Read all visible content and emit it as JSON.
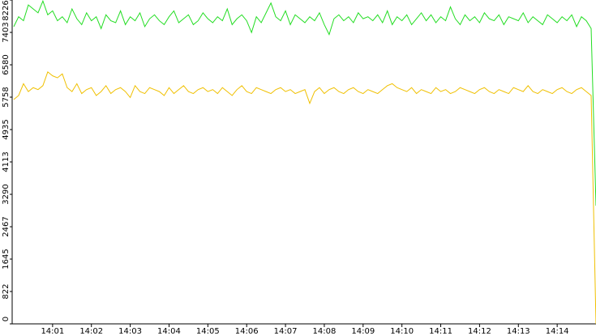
{
  "chart_data": {
    "type": "line",
    "categories": [
      null,
      null,
      null,
      null,
      null,
      null,
      null,
      null,
      "14:01",
      null,
      null,
      null,
      null,
      null,
      null,
      null,
      "14:02",
      null,
      null,
      null,
      null,
      null,
      null,
      null,
      "14:03",
      null,
      null,
      null,
      null,
      null,
      null,
      null,
      "14:04",
      null,
      null,
      null,
      null,
      null,
      null,
      null,
      "14:05",
      null,
      null,
      null,
      null,
      null,
      null,
      null,
      "14:06",
      null,
      null,
      null,
      null,
      null,
      null,
      null,
      "14:07",
      null,
      null,
      null,
      null,
      null,
      null,
      null,
      "14:08",
      null,
      null,
      null,
      null,
      null,
      null,
      null,
      "14:09",
      null,
      null,
      null,
      null,
      null,
      null,
      null,
      "14:10",
      null,
      null,
      null,
      null,
      null,
      null,
      null,
      "14:11",
      null,
      null,
      null,
      null,
      null,
      null,
      null,
      "14:12",
      null,
      null,
      null,
      null,
      null,
      null,
      null,
      "14:13",
      null,
      null,
      null,
      null,
      null,
      null,
      null,
      "14:14",
      null,
      null,
      null,
      null,
      null,
      null,
      null,
      null
    ],
    "series": [
      {
        "color": "#22dd22",
        "values": [
          7550,
          7800,
          7700,
          8100,
          8000,
          7900,
          8200,
          7850,
          7950,
          7700,
          7800,
          7650,
          8000,
          7750,
          7600,
          7900,
          7700,
          7800,
          7500,
          7850,
          7700,
          7650,
          7950,
          7600,
          7800,
          7700,
          7900,
          7550,
          7750,
          7850,
          7700,
          7600,
          7800,
          7950,
          7650,
          7750,
          7850,
          7600,
          7700,
          7900,
          7750,
          7650,
          7800,
          7700,
          8000,
          7600,
          7750,
          7850,
          7700,
          7400,
          7800,
          7650,
          7900,
          8150,
          7800,
          7700,
          7950,
          7600,
          7850,
          7750,
          7650,
          7800,
          7700,
          7900,
          7600,
          7350,
          7750,
          7850,
          7700,
          7800,
          7650,
          7900,
          7750,
          7800,
          7700,
          7850,
          7650,
          7950,
          7600,
          7800,
          7700,
          7850,
          7600,
          7750,
          7900,
          7700,
          7850,
          7650,
          7800,
          7700,
          8050,
          7750,
          7600,
          7850,
          7700,
          7800,
          7650,
          7900,
          7750,
          7700,
          7850,
          7600,
          7800,
          7750,
          7700,
          7900,
          7650,
          7800,
          7700,
          7600,
          7850,
          7750,
          7650,
          7800,
          7700,
          7850,
          7550,
          7800,
          7700,
          7500,
          3000
        ]
      },
      {
        "color": "#f0c000",
        "values": [
          5700,
          5800,
          6100,
          5900,
          6000,
          5950,
          6050,
          6400,
          6300,
          6250,
          6350,
          6000,
          5900,
          6100,
          5850,
          5950,
          6000,
          5800,
          5900,
          6050,
          5850,
          5950,
          6000,
          5900,
          5750,
          6050,
          5900,
          5850,
          6000,
          5950,
          5900,
          5800,
          6000,
          5850,
          5950,
          6050,
          5900,
          5850,
          5950,
          6000,
          5900,
          5950,
          5850,
          6000,
          5900,
          5800,
          5950,
          6050,
          5900,
          5850,
          6000,
          5950,
          5900,
          5850,
          5950,
          6000,
          5900,
          5950,
          5850,
          5900,
          5950,
          5600,
          5900,
          6000,
          5850,
          5950,
          6000,
          5900,
          5850,
          5950,
          6000,
          5900,
          5850,
          5950,
          5900,
          5850,
          5950,
          6050,
          6100,
          6000,
          5950,
          5900,
          6000,
          5850,
          5950,
          5900,
          5850,
          6000,
          5900,
          5950,
          5850,
          5900,
          6000,
          5950,
          5900,
          5850,
          5950,
          6000,
          5900,
          5850,
          5950,
          5900,
          5850,
          6000,
          5950,
          5900,
          6050,
          5900,
          5850,
          5950,
          5900,
          5850,
          5950,
          6000,
          5900,
          5850,
          5950,
          6000,
          5900,
          5800,
          0
        ]
      }
    ],
    "ylim": [
      0,
      8226
    ],
    "yticks": [
      0,
      822,
      1645,
      2467,
      3290,
      4113,
      4935,
      5758,
      6580,
      7403,
      8226
    ]
  }
}
